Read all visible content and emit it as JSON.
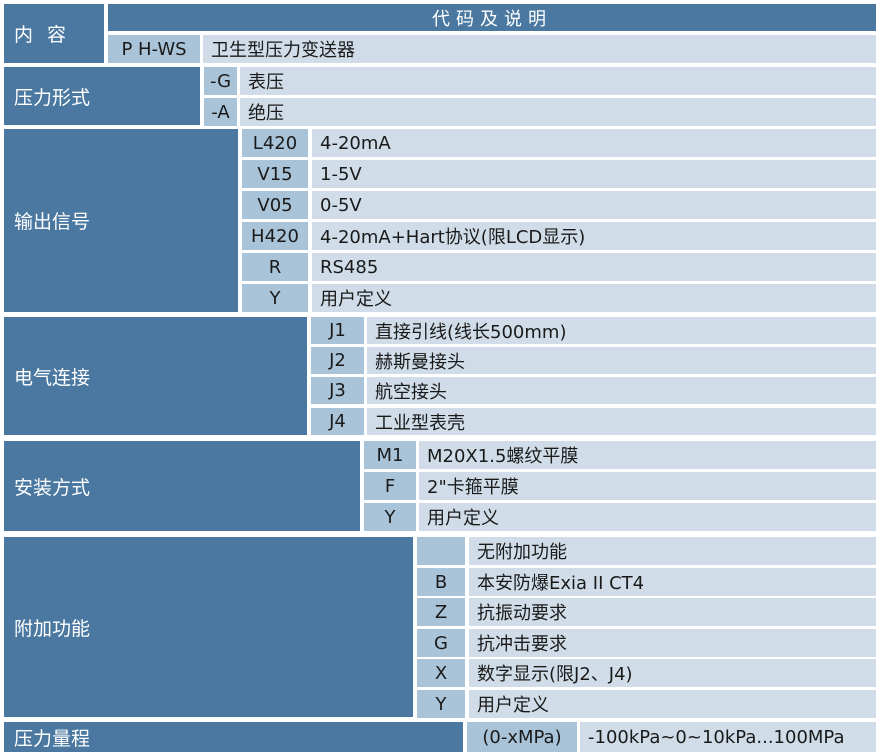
{
  "header": {
    "content_label": "内 容",
    "code_label": "代码及说明",
    "model_code": "P H-WS",
    "model_desc": "卫生型压力变送器"
  },
  "colors": {
    "header": "#4a78a0",
    "code_cell": "#a9c4d9",
    "desc_cell": "#d0dde8"
  },
  "sections": [
    {
      "label": "压力形式",
      "rows": [
        {
          "code": "-G",
          "desc": "表压"
        },
        {
          "code": "-A",
          "desc": "绝压"
        }
      ]
    },
    {
      "label": "输出信号",
      "rows": [
        {
          "code": "L420",
          "desc": "4-20mA"
        },
        {
          "code": "V15",
          "desc": "1-5V"
        },
        {
          "code": "V05",
          "desc": "0-5V"
        },
        {
          "code": "H420",
          "desc": "4-20mA+Hart协议(限LCD显示)"
        },
        {
          "code": "R",
          "desc": "RS485"
        },
        {
          "code": "Y",
          "desc": "用户定义"
        }
      ]
    },
    {
      "label": "电气连接",
      "rows": [
        {
          "code": "J1",
          "desc": "直接引线(线长500mm)"
        },
        {
          "code": "J2",
          "desc": "赫斯曼接头"
        },
        {
          "code": "J3",
          "desc": "航空接头"
        },
        {
          "code": "J4",
          "desc": "工业型表壳"
        }
      ]
    },
    {
      "label": "安装方式",
      "rows": [
        {
          "code": "M1",
          "desc": "M20X1.5螺纹平膜"
        },
        {
          "code": "F",
          "desc": "2\"卡箍平膜"
        },
        {
          "code": "Y",
          "desc": "用户定义"
        }
      ]
    },
    {
      "label": "附加功能",
      "rows": [
        {
          "code": "",
          "desc": "无附加功能"
        },
        {
          "code": "B",
          "desc": "本安防爆Exia II CT4"
        },
        {
          "code": "Z",
          "desc": "抗振动要求"
        },
        {
          "code": "G",
          "desc": "抗冲击要求"
        },
        {
          "code": "X",
          "desc": "数字显示(限J2、J4)"
        },
        {
          "code": "Y",
          "desc": "用户定义"
        }
      ]
    },
    {
      "label": "压力量程",
      "rows": [
        {
          "code": "(0-xMPa)",
          "desc": "-100kPa~0~10kPa...100MPa"
        }
      ]
    }
  ]
}
